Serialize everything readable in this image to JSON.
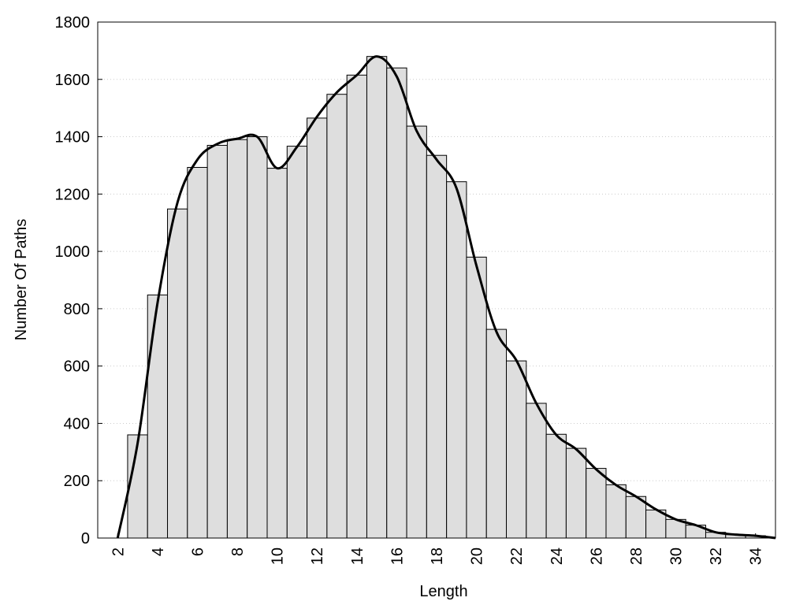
{
  "chart_data": {
    "type": "histogram",
    "xlabel": "Length",
    "ylabel": "Number Of Paths",
    "bins": [
      2.5,
      3.5,
      4.5,
      5.5,
      6.5,
      7.5,
      8.5,
      9.5,
      10.5,
      11.5,
      12.5,
      13.5,
      14.5,
      15.5,
      16.5,
      17.5,
      18.5,
      19.5,
      20.5,
      21.5,
      22.5,
      23.5,
      24.5,
      25.5,
      26.5,
      27.5,
      28.5,
      29.5,
      30.5,
      31.5,
      32.5,
      33.5,
      34.5
    ],
    "values": [
      360,
      848,
      1148,
      1293,
      1370,
      1390,
      1400,
      1290,
      1367,
      1465,
      1548,
      1615,
      1680,
      1640,
      1437,
      1335,
      1243,
      980,
      728,
      618,
      470,
      362,
      313,
      243,
      186,
      145,
      98,
      65,
      45,
      20,
      12,
      8
    ],
    "color": "#dedede",
    "curve": {
      "type": "line",
      "color": "#000000",
      "x": [
        2,
        3,
        4,
        5,
        6,
        7,
        8,
        9,
        10,
        11,
        12,
        13,
        14,
        15,
        16,
        17,
        18,
        19,
        20,
        21,
        22,
        23,
        24,
        25,
        26,
        27,
        28,
        29,
        30,
        31,
        32,
        33,
        34,
        35
      ],
      "values": [
        0,
        330,
        820,
        1170,
        1320,
        1375,
        1393,
        1400,
        1290,
        1365,
        1470,
        1555,
        1615,
        1680,
        1610,
        1420,
        1320,
        1220,
        950,
        720,
        620,
        470,
        360,
        310,
        240,
        185,
        145,
        100,
        65,
        45,
        20,
        12,
        8,
        0
      ]
    },
    "xlim": [
      1,
      35
    ],
    "ylim": [
      0,
      1800
    ],
    "xticks": [
      2,
      4,
      6,
      8,
      10,
      12,
      14,
      16,
      18,
      20,
      22,
      24,
      26,
      28,
      30,
      32,
      34
    ],
    "yticks": [
      0,
      200,
      400,
      600,
      800,
      1000,
      1200,
      1400,
      1600,
      1800
    ],
    "grid": true
  }
}
